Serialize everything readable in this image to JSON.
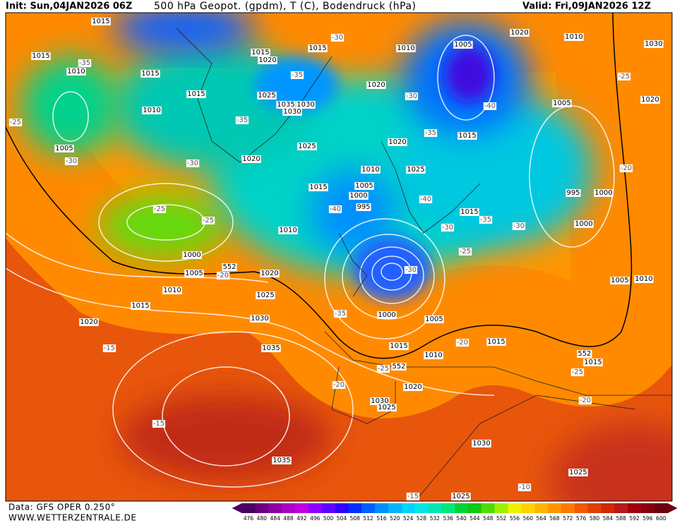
{
  "header": {
    "init": "Init: Sun,04JAN2026 06Z",
    "title": "500 hPa Geopot. (gpdm), T (C), Bodendruck (hPa)",
    "valid": "Valid: Fri,09JAN2026 12Z"
  },
  "footer": {
    "data": "Data: GFS OPER 0.250°",
    "site": "WWW.WETTERZENTRALE.DE"
  },
  "pressure_labels": [
    1015,
    1015,
    1010,
    1015,
    1010,
    1005,
    1015,
    1020,
    1015,
    1015,
    1025,
    1035,
    1030,
    1030,
    1025,
    1020,
    1010,
    1020,
    1005,
    1020,
    1010,
    1030,
    1020,
    1005,
    1015,
    1020,
    1025,
    1010,
    1015,
    1005,
    1000,
    995,
    995,
    1000,
    1015,
    1000,
    1010,
    1000,
    1005,
    1020,
    1010,
    1025,
    1015,
    1030,
    1020,
    1000,
    1005,
    1015,
    1010,
    1015,
    1015,
    1005,
    1010,
    1035,
    1020,
    1030,
    1025,
    1030,
    1035,
    1025,
    1025
  ],
  "temperature_labels": [
    -30,
    -35,
    -35,
    -30,
    -40,
    -35,
    -35,
    -25,
    -30,
    -30,
    -25,
    -20,
    -40,
    -40,
    -35,
    -30,
    -30,
    -25,
    -25,
    -25,
    -30,
    -20,
    -35,
    -15,
    -20,
    -25,
    -20,
    -25,
    -20,
    -15,
    -15,
    -10
  ],
  "thickness_labels": [
    552,
    552,
    552
  ],
  "colorbar": {
    "labels": [
      476,
      480,
      484,
      488,
      492,
      496,
      500,
      504,
      508,
      512,
      516,
      520,
      524,
      528,
      532,
      536,
      540,
      544,
      548,
      552,
      556,
      560,
      564,
      568,
      572,
      576,
      580,
      584,
      588,
      592,
      596,
      600
    ],
    "colors": [
      "#4a0060",
      "#6a0080",
      "#8a00a0",
      "#aa00c8",
      "#c000e0",
      "#8c00ff",
      "#6000ff",
      "#3000ff",
      "#0030ff",
      "#0060ff",
      "#0090ff",
      "#00b4ff",
      "#00d2ff",
      "#00e6e6",
      "#00e6b4",
      "#00e678",
      "#00d23c",
      "#10c810",
      "#50dc00",
      "#a0f000",
      "#f0f000",
      "#ffd200",
      "#ffb400",
      "#ff9600",
      "#ff7800",
      "#f05a00",
      "#e04000",
      "#d02800",
      "#b81818",
      "#a00010",
      "#880010",
      "#700010"
    ]
  }
}
